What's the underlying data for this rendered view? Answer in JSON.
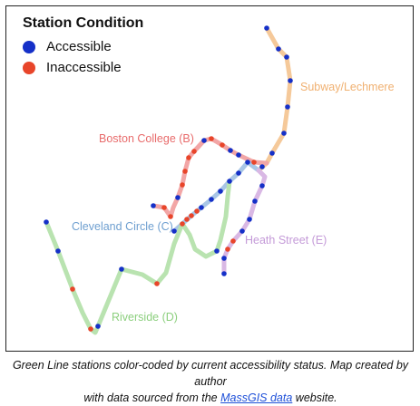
{
  "legend": {
    "title": "Station Condition",
    "accessible": "Accessible",
    "inaccessible": "Inaccessible"
  },
  "colors": {
    "accessible": "#1530c8",
    "inaccessible": "#e8452a",
    "branch_b": "#f2a6a6",
    "branch_c": "#a9c6e6",
    "branch_d": "#b9e3b0",
    "branch_e": "#d9b8e4",
    "subway": "#f5c99a",
    "label_b": "#e86b6b",
    "label_c": "#6e9fd0",
    "label_d": "#8ccf7e",
    "label_e": "#c49ad8",
    "label_subway": "#f0b070"
  },
  "lines": {
    "subway": "Subway/Lechmere",
    "b": "Boston College (B)",
    "c": "Cleveland Circle (C)",
    "d": "Riverside (D)",
    "e": "Heath Street (E)"
  },
  "caption": {
    "line1": "Green Line stations color-coded by current accessibility status. Map created by author",
    "line2_prefix": "with data sourced from the ",
    "link": "MassGIS data",
    "line2_suffix": " website."
  }
}
